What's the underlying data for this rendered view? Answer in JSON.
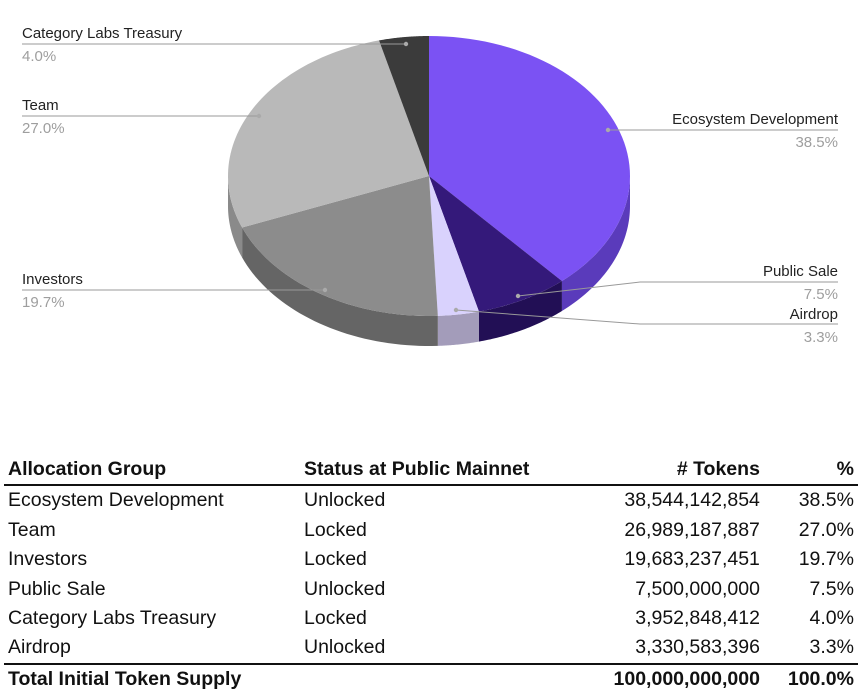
{
  "chart_data": {
    "type": "pie",
    "style": "3d",
    "start_angle": "top, clockwise",
    "slices": [
      {
        "label": "Ecosystem Development",
        "value": 38.5,
        "pct_label": "38.5%",
        "color": "#7b52f3",
        "side_color": "#5a3bbb"
      },
      {
        "label": "Public Sale",
        "value": 7.5,
        "pct_label": "7.5%",
        "color": "#34197a",
        "side_color": "#220f55"
      },
      {
        "label": "Airdrop",
        "value": 3.3,
        "pct_label": "3.3%",
        "color": "#d9d2fd",
        "side_color": "#a39cba"
      },
      {
        "label": "Investors",
        "value": 19.7,
        "pct_label": "19.7%",
        "color": "#8c8c8c",
        "side_color": "#656565"
      },
      {
        "label": "Team",
        "value": 27.0,
        "pct_label": "27.0%",
        "color": "#b9b9b9",
        "side_color": "#8a8a8a"
      },
      {
        "label": "Category Labs Treasury",
        "value": 4.0,
        "pct_label": "4.0%",
        "color": "#3b3b3b",
        "side_color": "#2a2a2a"
      }
    ]
  },
  "table": {
    "headers": [
      "Allocation Group",
      "Status at Public Mainnet",
      "# Tokens",
      "%"
    ],
    "rows": [
      [
        "Ecosystem Development",
        "Unlocked",
        "38,544,142,854",
        "38.5%"
      ],
      [
        "Team",
        "Locked",
        "26,989,187,887",
        "27.0%"
      ],
      [
        "Investors",
        "Locked",
        "19,683,237,451",
        "19.7%"
      ],
      [
        "Public Sale",
        "Unlocked",
        "7,500,000,000",
        "7.5%"
      ],
      [
        "Category Labs Treasury",
        "Locked",
        "3,952,848,412",
        "4.0%"
      ],
      [
        "Airdrop",
        "Unlocked",
        "3,330,583,396",
        "3.3%"
      ]
    ],
    "total": [
      "Total Initial Token Supply",
      "",
      "100,000,000,000",
      "100.0%"
    ]
  }
}
